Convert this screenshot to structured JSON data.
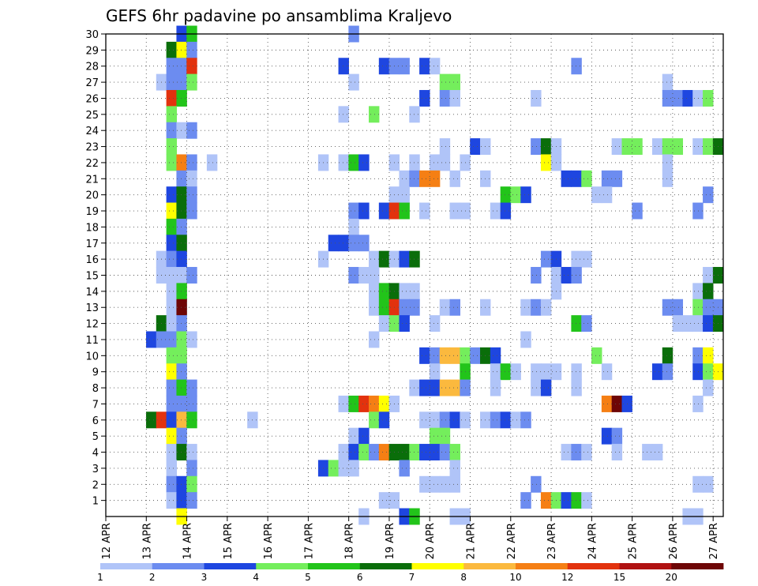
{
  "chart_data": {
    "type": "heatmap",
    "title": "GEFS 6hr padavine po ansamblima Kraljevo",
    "xlabel": "",
    "ylabel": "",
    "x_ticks": [
      "12 APR",
      "13 APR",
      "14 APR",
      "15 APR",
      "16 APR",
      "17 APR",
      "18 APR",
      "19 APR",
      "20 APR",
      "21 APR",
      "22 APR",
      "23 APR",
      "24 APR",
      "25 APR",
      "26 APR",
      "27 APR"
    ],
    "y_ticks": [
      1,
      2,
      3,
      4,
      5,
      6,
      7,
      8,
      9,
      10,
      11,
      12,
      13,
      14,
      15,
      16,
      17,
      18,
      19,
      20,
      21,
      22,
      23,
      24,
      25,
      26,
      27,
      28,
      29,
      30
    ],
    "xlim_days": [
      12,
      27.25
    ],
    "ylim": [
      0,
      30
    ],
    "grid": true,
    "time_step": "6hr",
    "colorbar": {
      "bounds": [
        1,
        2,
        3,
        4,
        5,
        6,
        7,
        8,
        10,
        12,
        15,
        20
      ],
      "labels": [
        "1",
        "2",
        "3",
        "4",
        "5",
        "6",
        "7",
        "8",
        "10",
        "12",
        "15",
        "20"
      ],
      "colors": [
        "#b0c4f8",
        "#6c8cf0",
        "#1e46e0",
        "#74ee5c",
        "#22c41a",
        "#0a6e0a",
        "#ffff00",
        "#fbb93e",
        "#f57f14",
        "#e2320e",
        "#b01212",
        "#6e0606"
      ]
    },
    "cells": [
      [
        30,
        13.75,
        2
      ],
      [
        30,
        14.0,
        4
      ],
      [
        30,
        18.0,
        1
      ],
      [
        29,
        13.5,
        5
      ],
      [
        29,
        13.75,
        6
      ],
      [
        29,
        14.0,
        1
      ],
      [
        28,
        13.5,
        1
      ],
      [
        28,
        13.75,
        1
      ],
      [
        28,
        14.0,
        9
      ],
      [
        28,
        17.75,
        2
      ],
      [
        28,
        18.75,
        2
      ],
      [
        28,
        19.0,
        1
      ],
      [
        28,
        19.25,
        1
      ],
      [
        28,
        19.75,
        2
      ],
      [
        28,
        20.0,
        0
      ],
      [
        28,
        23.5,
        1
      ],
      [
        27,
        13.25,
        0
      ],
      [
        27,
        13.5,
        1
      ],
      [
        27,
        13.75,
        1
      ],
      [
        27,
        14.0,
        3
      ],
      [
        27,
        18.0,
        0
      ],
      [
        27,
        20.25,
        3
      ],
      [
        27,
        20.5,
        3
      ],
      [
        27,
        25.75,
        0
      ],
      [
        26,
        13.5,
        9
      ],
      [
        26,
        13.75,
        4
      ],
      [
        26,
        19.75,
        2
      ],
      [
        26,
        20.25,
        1
      ],
      [
        26,
        20.5,
        0
      ],
      [
        26,
        22.5,
        0
      ],
      [
        26,
        25.75,
        1
      ],
      [
        26,
        26.0,
        1
      ],
      [
        26,
        26.25,
        2
      ],
      [
        26,
        26.5,
        0
      ],
      [
        26,
        26.75,
        3
      ],
      [
        25,
        13.5,
        3
      ],
      [
        25,
        17.75,
        0
      ],
      [
        25,
        18.5,
        3
      ],
      [
        25,
        19.5,
        0
      ],
      [
        24,
        13.5,
        1
      ],
      [
        24,
        13.75,
        0
      ],
      [
        24,
        14.0,
        1
      ],
      [
        23,
        13.5,
        3
      ],
      [
        23,
        20.25,
        0
      ],
      [
        23,
        21.0,
        2
      ],
      [
        23,
        21.25,
        0
      ],
      [
        23,
        22.5,
        1
      ],
      [
        23,
        22.75,
        5
      ],
      [
        23,
        23.0,
        0
      ],
      [
        23,
        24.5,
        0
      ],
      [
        23,
        24.75,
        3
      ],
      [
        23,
        25.0,
        3
      ],
      [
        23,
        25.5,
        0
      ],
      [
        23,
        25.75,
        3
      ],
      [
        23,
        26.0,
        3
      ],
      [
        23,
        26.5,
        0
      ],
      [
        23,
        26.75,
        3
      ],
      [
        23,
        27.0,
        5
      ],
      [
        22,
        13.5,
        3
      ],
      [
        22,
        13.75,
        8
      ],
      [
        22,
        14.0,
        1
      ],
      [
        22,
        14.5,
        0
      ],
      [
        22,
        17.25,
        0
      ],
      [
        22,
        17.75,
        0
      ],
      [
        22,
        18.0,
        4
      ],
      [
        22,
        18.25,
        2
      ],
      [
        22,
        19.0,
        0
      ],
      [
        22,
        19.5,
        0
      ],
      [
        22,
        20.0,
        0
      ],
      [
        22,
        20.25,
        0
      ],
      [
        22,
        20.75,
        0
      ],
      [
        22,
        22.75,
        6
      ],
      [
        22,
        23.0,
        0
      ],
      [
        22,
        25.75,
        0
      ],
      [
        21,
        13.75,
        1
      ],
      [
        21,
        14.0,
        0
      ],
      [
        21,
        19.25,
        0
      ],
      [
        21,
        19.5,
        1
      ],
      [
        21,
        19.75,
        8
      ],
      [
        21,
        20.0,
        8
      ],
      [
        21,
        20.5,
        0
      ],
      [
        21,
        21.25,
        0
      ],
      [
        21,
        23.25,
        2
      ],
      [
        21,
        23.5,
        2
      ],
      [
        21,
        23.75,
        3
      ],
      [
        21,
        24.25,
        1
      ],
      [
        21,
        24.5,
        1
      ],
      [
        21,
        25.75,
        0
      ],
      [
        20,
        13.5,
        2
      ],
      [
        20,
        13.75,
        5
      ],
      [
        20,
        14.0,
        1
      ],
      [
        20,
        19.0,
        0
      ],
      [
        20,
        19.25,
        0
      ],
      [
        20,
        21.75,
        4
      ],
      [
        20,
        22.0,
        3
      ],
      [
        20,
        22.25,
        2
      ],
      [
        20,
        24.0,
        0
      ],
      [
        20,
        24.25,
        0
      ],
      [
        20,
        26.75,
        1
      ],
      [
        19,
        13.5,
        6
      ],
      [
        19,
        13.75,
        5
      ],
      [
        19,
        14.0,
        1
      ],
      [
        19,
        18.0,
        1
      ],
      [
        19,
        18.25,
        2
      ],
      [
        19,
        18.75,
        2
      ],
      [
        19,
        19.0,
        9
      ],
      [
        19,
        19.25,
        4
      ],
      [
        19,
        19.75,
        0
      ],
      [
        19,
        20.5,
        0
      ],
      [
        19,
        20.75,
        0
      ],
      [
        19,
        21.5,
        0
      ],
      [
        19,
        21.75,
        2
      ],
      [
        19,
        25.0,
        1
      ],
      [
        19,
        26.5,
        1
      ],
      [
        18,
        13.5,
        4
      ],
      [
        18,
        13.75,
        1
      ],
      [
        18,
        18.0,
        0
      ],
      [
        17,
        13.5,
        2
      ],
      [
        17,
        13.75,
        5
      ],
      [
        17,
        17.5,
        2
      ],
      [
        17,
        17.75,
        2
      ],
      [
        17,
        18.0,
        1
      ],
      [
        17,
        18.25,
        1
      ],
      [
        16,
        13.25,
        0
      ],
      [
        16,
        13.5,
        1
      ],
      [
        16,
        13.75,
        2
      ],
      [
        16,
        17.25,
        0
      ],
      [
        16,
        18.5,
        0
      ],
      [
        16,
        18.75,
        5
      ],
      [
        16,
        19.0,
        0
      ],
      [
        16,
        19.25,
        2
      ],
      [
        16,
        19.5,
        5
      ],
      [
        16,
        22.75,
        1
      ],
      [
        16,
        23.0,
        2
      ],
      [
        16,
        23.5,
        0
      ],
      [
        16,
        23.75,
        0
      ],
      [
        15,
        13.25,
        0
      ],
      [
        15,
        13.5,
        0
      ],
      [
        15,
        13.75,
        0
      ],
      [
        15,
        14.0,
        1
      ],
      [
        15,
        18.0,
        1
      ],
      [
        15,
        18.25,
        0
      ],
      [
        15,
        18.5,
        0
      ],
      [
        15,
        22.5,
        1
      ],
      [
        15,
        23.0,
        0
      ],
      [
        15,
        23.25,
        2
      ],
      [
        15,
        23.5,
        1
      ],
      [
        15,
        26.75,
        0
      ],
      [
        15,
        27.0,
        5
      ],
      [
        14,
        13.5,
        0
      ],
      [
        14,
        13.75,
        4
      ],
      [
        14,
        18.5,
        0
      ],
      [
        14,
        18.75,
        4
      ],
      [
        14,
        19.0,
        5
      ],
      [
        14,
        19.25,
        0
      ],
      [
        14,
        19.5,
        0
      ],
      [
        14,
        23.0,
        0
      ],
      [
        14,
        26.5,
        0
      ],
      [
        14,
        26.75,
        5
      ],
      [
        13,
        13.5,
        0
      ],
      [
        13,
        13.75,
        11
      ],
      [
        13,
        18.5,
        0
      ],
      [
        13,
        18.75,
        4
      ],
      [
        13,
        19.0,
        9
      ],
      [
        13,
        19.25,
        1
      ],
      [
        13,
        19.5,
        1
      ],
      [
        13,
        20.25,
        0
      ],
      [
        13,
        20.5,
        1
      ],
      [
        13,
        21.25,
        0
      ],
      [
        13,
        22.25,
        0
      ],
      [
        13,
        22.5,
        1
      ],
      [
        13,
        22.75,
        0
      ],
      [
        13,
        25.75,
        1
      ],
      [
        13,
        26.0,
        1
      ],
      [
        13,
        26.5,
        3
      ],
      [
        13,
        26.75,
        1
      ],
      [
        13,
        27.0,
        1
      ],
      [
        12,
        13.25,
        5
      ],
      [
        12,
        13.5,
        0
      ],
      [
        12,
        13.75,
        1
      ],
      [
        12,
        18.75,
        0
      ],
      [
        12,
        19.0,
        3
      ],
      [
        12,
        19.25,
        2
      ],
      [
        12,
        20.0,
        0
      ],
      [
        12,
        23.5,
        4
      ],
      [
        12,
        23.75,
        1
      ],
      [
        12,
        26.0,
        0
      ],
      [
        12,
        26.25,
        0
      ],
      [
        12,
        26.5,
        0
      ],
      [
        12,
        26.75,
        2
      ],
      [
        12,
        27.0,
        5
      ],
      [
        11,
        13.0,
        2
      ],
      [
        11,
        13.25,
        1
      ],
      [
        11,
        13.5,
        1
      ],
      [
        11,
        13.75,
        3
      ],
      [
        11,
        14.0,
        0
      ],
      [
        11,
        18.5,
        0
      ],
      [
        11,
        22.25,
        0
      ],
      [
        10,
        13.5,
        3
      ],
      [
        10,
        13.75,
        3
      ],
      [
        10,
        19.75,
        2
      ],
      [
        10,
        20.0,
        1
      ],
      [
        10,
        20.25,
        7
      ],
      [
        10,
        20.5,
        7
      ],
      [
        10,
        20.75,
        3
      ],
      [
        10,
        21.0,
        1
      ],
      [
        10,
        21.25,
        5
      ],
      [
        10,
        21.5,
        2
      ],
      [
        10,
        24.0,
        3
      ],
      [
        10,
        25.75,
        5
      ],
      [
        10,
        26.5,
        1
      ],
      [
        10,
        26.75,
        6
      ],
      [
        9,
        13.5,
        6
      ],
      [
        9,
        13.75,
        1
      ],
      [
        9,
        20.0,
        0
      ],
      [
        9,
        20.75,
        4
      ],
      [
        9,
        21.5,
        0
      ],
      [
        9,
        21.75,
        4
      ],
      [
        9,
        22.0,
        0
      ],
      [
        9,
        22.5,
        0
      ],
      [
        9,
        22.75,
        0
      ],
      [
        9,
        23.0,
        0
      ],
      [
        9,
        23.5,
        0
      ],
      [
        9,
        24.25,
        0
      ],
      [
        9,
        25.5,
        2
      ],
      [
        9,
        25.75,
        1
      ],
      [
        9,
        26.5,
        2
      ],
      [
        9,
        26.75,
        3
      ],
      [
        9,
        27.0,
        6
      ],
      [
        8,
        13.5,
        1
      ],
      [
        8,
        13.75,
        4
      ],
      [
        8,
        14.0,
        1
      ],
      [
        8,
        19.5,
        0
      ],
      [
        8,
        19.75,
        2
      ],
      [
        8,
        20.0,
        2
      ],
      [
        8,
        20.25,
        7
      ],
      [
        8,
        20.5,
        7
      ],
      [
        8,
        20.75,
        1
      ],
      [
        8,
        21.5,
        0
      ],
      [
        8,
        22.5,
        0
      ],
      [
        8,
        22.75,
        2
      ],
      [
        8,
        23.5,
        0
      ],
      [
        8,
        26.75,
        0
      ],
      [
        7,
        13.5,
        1
      ],
      [
        7,
        13.75,
        1
      ],
      [
        7,
        14.0,
        1
      ],
      [
        7,
        17.75,
        0
      ],
      [
        7,
        18.0,
        4
      ],
      [
        7,
        18.25,
        9
      ],
      [
        7,
        18.5,
        8
      ],
      [
        7,
        18.75,
        6
      ],
      [
        7,
        19.0,
        0
      ],
      [
        7,
        24.25,
        8
      ],
      [
        7,
        24.5,
        11
      ],
      [
        7,
        24.75,
        2
      ],
      [
        7,
        26.5,
        0
      ],
      [
        6,
        13.0,
        5
      ],
      [
        6,
        13.25,
        9
      ],
      [
        6,
        13.5,
        2
      ],
      [
        6,
        13.75,
        7
      ],
      [
        6,
        14.0,
        4
      ],
      [
        6,
        15.5,
        0
      ],
      [
        6,
        18.5,
        3
      ],
      [
        6,
        18.75,
        2
      ],
      [
        6,
        19.75,
        0
      ],
      [
        6,
        20.0,
        0
      ],
      [
        6,
        20.25,
        1
      ],
      [
        6,
        20.5,
        2
      ],
      [
        6,
        20.75,
        0
      ],
      [
        6,
        21.25,
        0
      ],
      [
        6,
        21.5,
        1
      ],
      [
        6,
        21.75,
        2
      ],
      [
        6,
        22.0,
        0
      ],
      [
        6,
        22.25,
        1
      ],
      [
        5,
        13.5,
        6
      ],
      [
        5,
        13.75,
        1
      ],
      [
        5,
        18.0,
        0
      ],
      [
        5,
        18.25,
        2
      ],
      [
        5,
        20.0,
        3
      ],
      [
        5,
        20.25,
        3
      ],
      [
        5,
        24.25,
        2
      ],
      [
        5,
        24.5,
        1
      ],
      [
        4,
        13.5,
        0
      ],
      [
        4,
        13.75,
        5
      ],
      [
        4,
        14.0,
        0
      ],
      [
        4,
        17.75,
        0
      ],
      [
        4,
        18.0,
        2
      ],
      [
        4,
        18.25,
        3
      ],
      [
        4,
        18.5,
        1
      ],
      [
        4,
        18.75,
        8
      ],
      [
        4,
        19.0,
        5
      ],
      [
        4,
        19.25,
        5
      ],
      [
        4,
        19.5,
        3
      ],
      [
        4,
        19.75,
        2
      ],
      [
        4,
        20.0,
        2
      ],
      [
        4,
        20.25,
        1
      ],
      [
        4,
        20.5,
        3
      ],
      [
        4,
        23.25,
        0
      ],
      [
        4,
        23.5,
        1
      ],
      [
        4,
        23.75,
        0
      ],
      [
        4,
        24.5,
        0
      ],
      [
        4,
        25.25,
        0
      ],
      [
        4,
        25.5,
        0
      ],
      [
        3,
        13.5,
        0
      ],
      [
        3,
        14.0,
        1
      ],
      [
        3,
        17.25,
        2
      ],
      [
        3,
        17.5,
        3
      ],
      [
        3,
        17.75,
        0
      ],
      [
        3,
        18.0,
        0
      ],
      [
        3,
        19.25,
        1
      ],
      [
        3,
        20.5,
        0
      ],
      [
        2,
        13.5,
        1
      ],
      [
        2,
        13.75,
        2
      ],
      [
        2,
        14.0,
        3
      ],
      [
        2,
        19.75,
        0
      ],
      [
        2,
        20.0,
        0
      ],
      [
        2,
        20.25,
        0
      ],
      [
        2,
        20.5,
        0
      ],
      [
        2,
        22.5,
        1
      ],
      [
        2,
        26.5,
        0
      ],
      [
        2,
        26.75,
        0
      ],
      [
        1,
        13.5,
        0
      ],
      [
        1,
        13.75,
        2
      ],
      [
        1,
        14.0,
        1
      ],
      [
        1,
        18.75,
        0
      ],
      [
        1,
        19.0,
        0
      ],
      [
        1,
        22.25,
        1
      ],
      [
        1,
        22.75,
        8
      ],
      [
        1,
        23.0,
        3
      ],
      [
        1,
        23.25,
        2
      ],
      [
        1,
        23.5,
        4
      ],
      [
        1,
        23.75,
        0
      ],
      [
        0,
        13.75,
        6
      ],
      [
        0,
        18.25,
        0
      ],
      [
        0,
        19.25,
        2
      ],
      [
        0,
        19.5,
        4
      ],
      [
        0,
        20.5,
        0
      ],
      [
        0,
        20.75,
        0
      ],
      [
        0,
        26.25,
        0
      ],
      [
        0,
        26.5,
        0
      ]
    ]
  }
}
